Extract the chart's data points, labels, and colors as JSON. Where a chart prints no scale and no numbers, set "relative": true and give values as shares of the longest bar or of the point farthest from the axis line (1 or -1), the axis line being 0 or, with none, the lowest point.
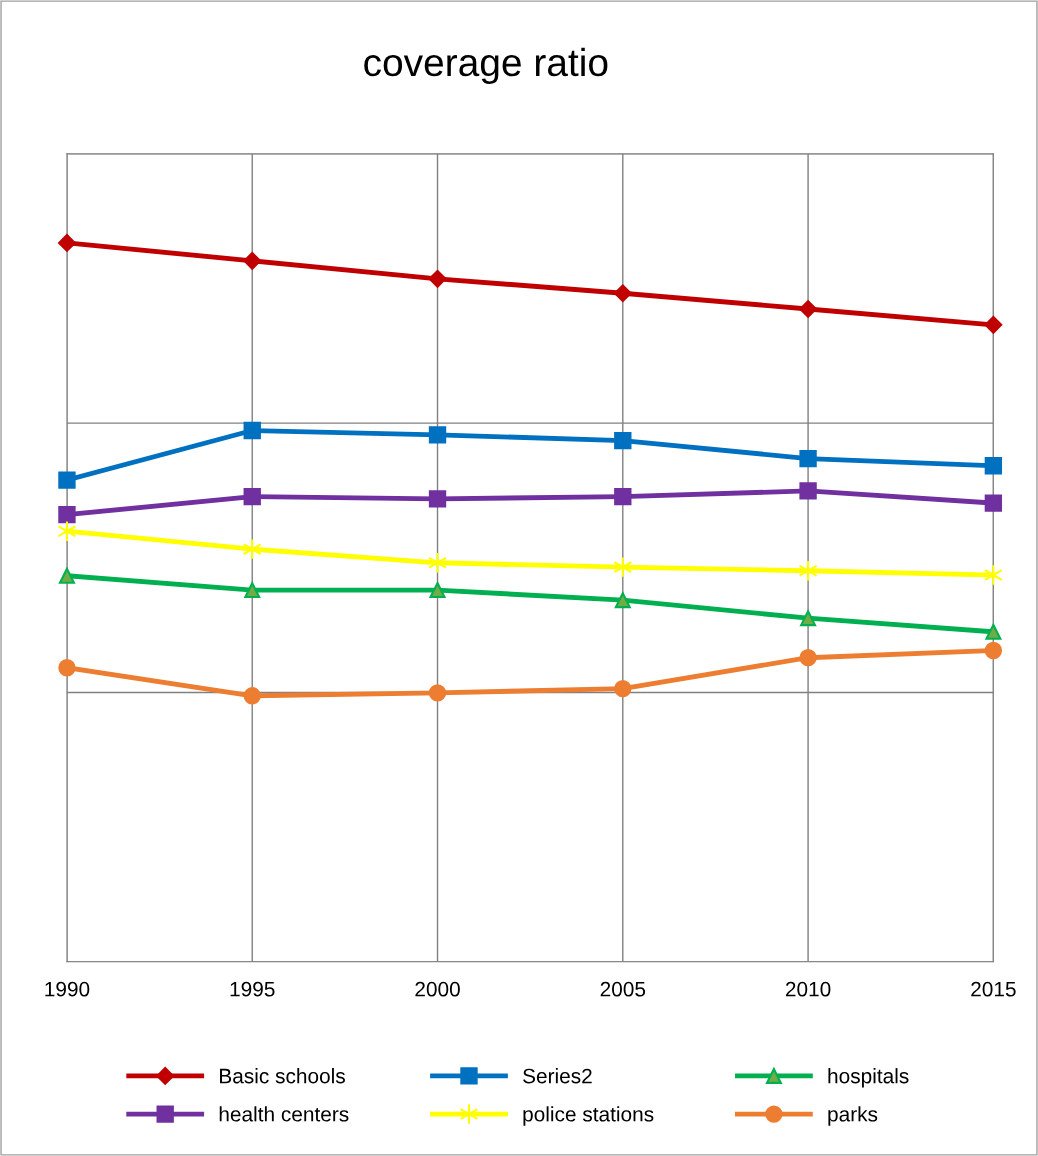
{
  "chart_data": {
    "type": "line",
    "title": "coverage ratio",
    "relative": true,
    "categories": [
      "1990",
      "1995",
      "2000",
      "2005",
      "2010",
      "2015"
    ],
    "grid": true,
    "legend": "bottom",
    "line_style": "solid",
    "series": [
      {
        "name": "Basic schools",
        "color": "#c00000",
        "marker": "diamond",
        "values": [
          1.0,
          0.975,
          0.95,
          0.93,
          0.908,
          0.886
        ]
      },
      {
        "name": "health centers",
        "color": "#7030a0",
        "marker": "square",
        "values": [
          0.622,
          0.647,
          0.644,
          0.647,
          0.655,
          0.638
        ]
      },
      {
        "name": "Series2",
        "color": "#0070c0",
        "marker": "square",
        "values": [
          0.67,
          0.739,
          0.733,
          0.725,
          0.7,
          0.69
        ]
      },
      {
        "name": "police stations",
        "color": "#ffff00",
        "marker": "cross",
        "values": [
          0.599,
          0.574,
          0.555,
          0.549,
          0.544,
          0.538
        ]
      },
      {
        "name": "hospitals",
        "color": "#00b050",
        "marker": "triangle",
        "values": [
          0.537,
          0.517,
          0.517,
          0.503,
          0.478,
          0.459
        ]
      },
      {
        "name": "parks",
        "color": "#ed7d31",
        "marker": "circle",
        "values": [
          0.409,
          0.37,
          0.374,
          0.38,
          0.423,
          0.433
        ]
      }
    ]
  }
}
